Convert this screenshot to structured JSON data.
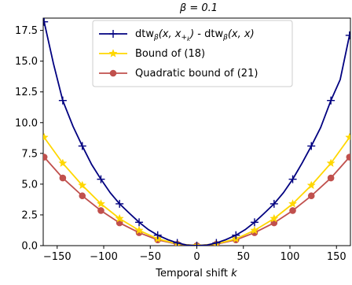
{
  "chart_data": {
    "type": "line",
    "title": "β = 0.1",
    "xlabel": "Temporal shift k",
    "ylabel": "",
    "xlim": [
      -165,
      165
    ],
    "ylim": [
      0,
      18.5
    ],
    "xticks": [
      -150,
      -100,
      -50,
      0,
      50,
      100,
      150
    ],
    "xtick_labels": [
      "−150",
      "−100",
      "−50",
      "0",
      "50",
      "100",
      "150"
    ],
    "yticks": [
      0.0,
      2.5,
      5.0,
      7.5,
      10.0,
      12.5,
      15.0,
      17.5
    ],
    "ytick_labels": [
      "0.0",
      "2.5",
      "5.0",
      "7.5",
      "10.0",
      "12.5",
      "15.0",
      "17.5"
    ],
    "grid": false,
    "legend_placement": "top-center",
    "series": [
      {
        "name": "dtw_β(x, x_{+k}) - dtw_β(x, x)",
        "legend_main": "dtw",
        "legend_mid": "(x, x",
        "legend_end": ") - dtw",
        "legend_tail": "(x, x)",
        "color": "#000080",
        "marker": "plus",
        "marker_x": [
          -164,
          -144,
          -123,
          -103,
          -83,
          -62,
          -42,
          -21,
          0,
          21,
          42,
          62,
          83,
          103,
          123,
          144,
          164
        ],
        "x": [
          -164,
          -154,
          -144,
          -133,
          -123,
          -113,
          -103,
          -93,
          -83,
          -72,
          -62,
          -52,
          -42,
          -31,
          -21,
          -11,
          0,
          11,
          21,
          31,
          42,
          52,
          62,
          72,
          83,
          93,
          103,
          113,
          123,
          133,
          144,
          154,
          164
        ],
        "y": [
          18.2,
          14.8,
          11.8,
          9.7,
          8.1,
          6.6,
          5.4,
          4.3,
          3.4,
          2.6,
          1.9,
          1.3,
          0.85,
          0.48,
          0.22,
          0.05,
          0.0,
          0.05,
          0.22,
          0.48,
          0.85,
          1.3,
          1.9,
          2.6,
          3.4,
          4.3,
          5.4,
          6.7,
          8.1,
          9.6,
          11.8,
          13.5,
          17.1
        ]
      },
      {
        "name": "Bound of (18)",
        "color": "#ffd700",
        "marker": "star",
        "x": [
          -164,
          -144,
          -123,
          -103,
          -83,
          -62,
          -42,
          -21,
          0,
          21,
          42,
          62,
          83,
          103,
          123,
          144,
          164
        ],
        "y": [
          8.8,
          6.7,
          4.9,
          3.4,
          2.2,
          1.24,
          0.55,
          0.14,
          0.0,
          0.14,
          0.55,
          1.24,
          2.2,
          3.4,
          4.9,
          6.7,
          8.8
        ]
      },
      {
        "name": "Quadratic bound of (21)",
        "color": "#c0504d",
        "marker": "circle",
        "x": [
          -164,
          -144,
          -123,
          -103,
          -83,
          -62,
          -42,
          -21,
          0,
          21,
          42,
          62,
          83,
          103,
          123,
          144,
          164
        ],
        "y": [
          7.2,
          5.5,
          4.05,
          2.85,
          1.85,
          1.05,
          0.47,
          0.12,
          0.0,
          0.12,
          0.47,
          1.05,
          1.85,
          2.85,
          4.05,
          5.5,
          7.2
        ]
      }
    ]
  }
}
